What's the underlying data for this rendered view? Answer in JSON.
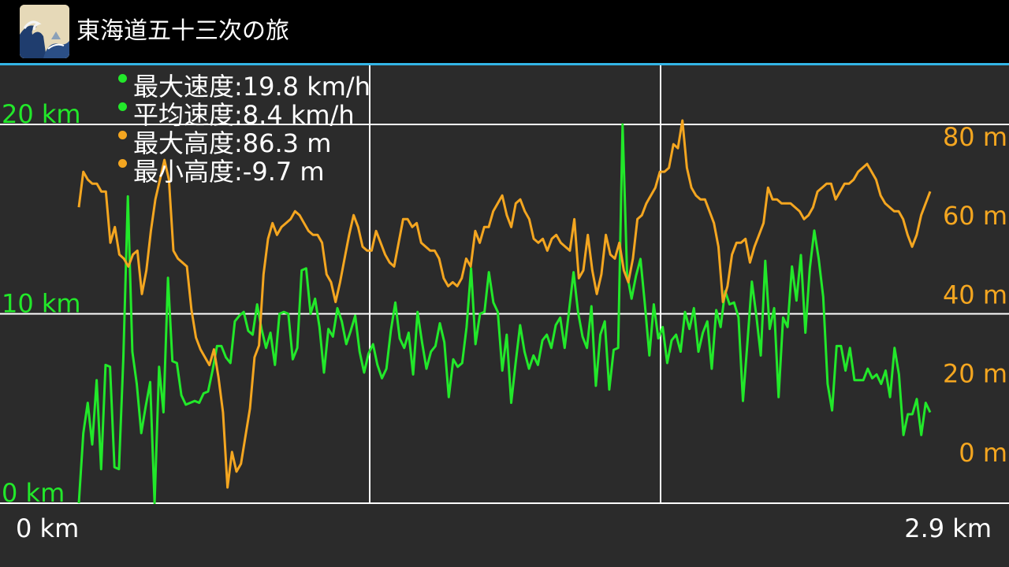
{
  "app": {
    "title": "東海道五十三次の旅",
    "icon": "great-wave-icon"
  },
  "colors": {
    "distance_series": "#22e82a",
    "altitude_series": "#f4a620",
    "grid": "#ffffff",
    "background": "#2b2b2b",
    "accent": "#33b5e5"
  },
  "legend": [
    {
      "label": "最大速度:19.8 km/h",
      "color": "#22e82a"
    },
    {
      "label": "平均速度:8.4 km/h",
      "color": "#22e82a"
    },
    {
      "label": "最大高度:86.3 m",
      "color": "#f4a620"
    },
    {
      "label": "最小高度:-9.7 m",
      "color": "#f4a620"
    }
  ],
  "chart_data": {
    "type": "line",
    "x_start_label": "0 km",
    "x_end_label": "2.9 km",
    "xlim": [
      0,
      2.9
    ],
    "left_axis": {
      "ticks": [
        "0 km",
        "10 km",
        "20 km"
      ],
      "ylim": [
        0,
        20
      ]
    },
    "right_axis": {
      "ticks": [
        "0 m",
        "20 m",
        "40 m",
        "60 m",
        "80 m"
      ],
      "ylim": [
        -13,
        83
      ]
    },
    "grid": true,
    "series": [
      {
        "axis": "left",
        "color": "#22e82a",
        "values": [
          0,
          3.7,
          5.3,
          3.1,
          6.5,
          1.8,
          7.3,
          7.2,
          1.9,
          1.8,
          7.7,
          16.2,
          8.0,
          6.3,
          3.7,
          5.1,
          6.4,
          0.0,
          7.2,
          4.8,
          11.9,
          7.5,
          7.4,
          5.7,
          5.2,
          5.3,
          5.4,
          5.3,
          5.8,
          5.9,
          7.0,
          8.3,
          8.3,
          7.7,
          7.4,
          9.6,
          9.9,
          10.1,
          9.1,
          8.9,
          10.5,
          9.2,
          8.2,
          9.0,
          7.3,
          10.0,
          10.1,
          10.0,
          7.6,
          8.2,
          12.3,
          12.4,
          10.0,
          10.8,
          9.3,
          6.9,
          9.2,
          8.8,
          10.3,
          9.6,
          8.4,
          9.1,
          9.9,
          8.0,
          6.9,
          7.9,
          8.4,
          7.3,
          6.6,
          7.1,
          9.1,
          10.6,
          8.7,
          8.2,
          9.0,
          6.8,
          10.1,
          8.5,
          7.1,
          8.0,
          8.3,
          9.5,
          8.5,
          5.6,
          7.6,
          7.2,
          7.4,
          9.3,
          12.4,
          8.4,
          10.0,
          10.1,
          12.2,
          10.6,
          10.1,
          7.0,
          8.9,
          5.3,
          7.4,
          9.4,
          8.0,
          7.1,
          7.8,
          7.3,
          8.6,
          8.9,
          8.2,
          9.4,
          9.8,
          8.2,
          10.2,
          12.2,
          10.1,
          8.8,
          8.2,
          10.4,
          6.2,
          8.9,
          9.6,
          6.0,
          8.1,
          8.2,
          20.0,
          12.1,
          10.8,
          12.0,
          12.9,
          10.5,
          7.8,
          10.5,
          8.7,
          9.3,
          7.4,
          8.6,
          8.9,
          8.0,
          10.1,
          9.2,
          10.3,
          8.0,
          9.0,
          9.6,
          7.1,
          10.2,
          9.3,
          11.2,
          10.5,
          10.6,
          9.8,
          5.4,
          8.5,
          11.7,
          9.9,
          7.8,
          12.8,
          9.2,
          10.3,
          5.6,
          9.8,
          9.3,
          12.5,
          10.7,
          13.1,
          9.0,
          12.4,
          14.4,
          12.9,
          10.9,
          6.3,
          4.9,
          8.3,
          8.3,
          7.0,
          8.2,
          6.5,
          6.5,
          6.5,
          7.1,
          6.6,
          6.8,
          6.3,
          7.0,
          5.6,
          8.2,
          6.8,
          3.6,
          4.7,
          4.7,
          5.5,
          3.6,
          5.3,
          4.8
        ]
      },
      {
        "axis": "right",
        "color": "#f4a620",
        "values": [
          62,
          71,
          69,
          68,
          68,
          66,
          66,
          53,
          57,
          50,
          49,
          47,
          50,
          51,
          40,
          46,
          56,
          64,
          69,
          74,
          69,
          51,
          49,
          48,
          47,
          36,
          29,
          26,
          24,
          22,
          26,
          19,
          10,
          -9,
          0,
          -5,
          -3,
          4,
          11,
          24,
          27,
          45,
          54,
          58,
          55,
          57,
          58,
          59,
          61,
          60,
          58,
          56,
          55,
          55,
          53,
          45,
          43,
          38,
          43,
          49,
          55,
          60,
          57,
          52,
          51,
          51,
          56,
          53,
          50,
          48,
          47,
          53,
          59,
          59,
          57,
          58,
          53,
          52,
          51,
          51,
          49,
          44,
          42,
          43,
          42,
          44,
          49,
          47,
          56,
          53,
          57,
          57,
          61,
          63,
          65,
          60,
          57,
          63,
          64,
          61,
          59,
          54,
          53,
          54,
          51,
          54,
          55,
          53,
          52,
          51,
          59,
          44,
          46,
          55,
          46,
          40,
          45,
          55,
          50,
          49,
          53,
          46,
          43,
          49,
          59,
          60,
          63,
          65,
          67,
          71,
          71,
          72,
          78,
          77,
          84,
          72,
          67,
          65,
          64,
          64,
          61,
          58,
          52,
          38,
          42,
          50,
          53,
          53,
          54,
          48,
          52,
          55,
          58,
          67,
          64,
          64,
          63,
          63,
          63,
          62,
          61,
          59,
          60,
          62,
          66,
          67,
          68,
          68,
          64,
          66,
          68,
          68,
          69,
          71,
          72,
          73,
          71,
          69,
          65,
          63,
          62,
          61,
          61,
          59,
          55,
          52,
          55,
          60,
          63,
          66
        ]
      }
    ]
  }
}
